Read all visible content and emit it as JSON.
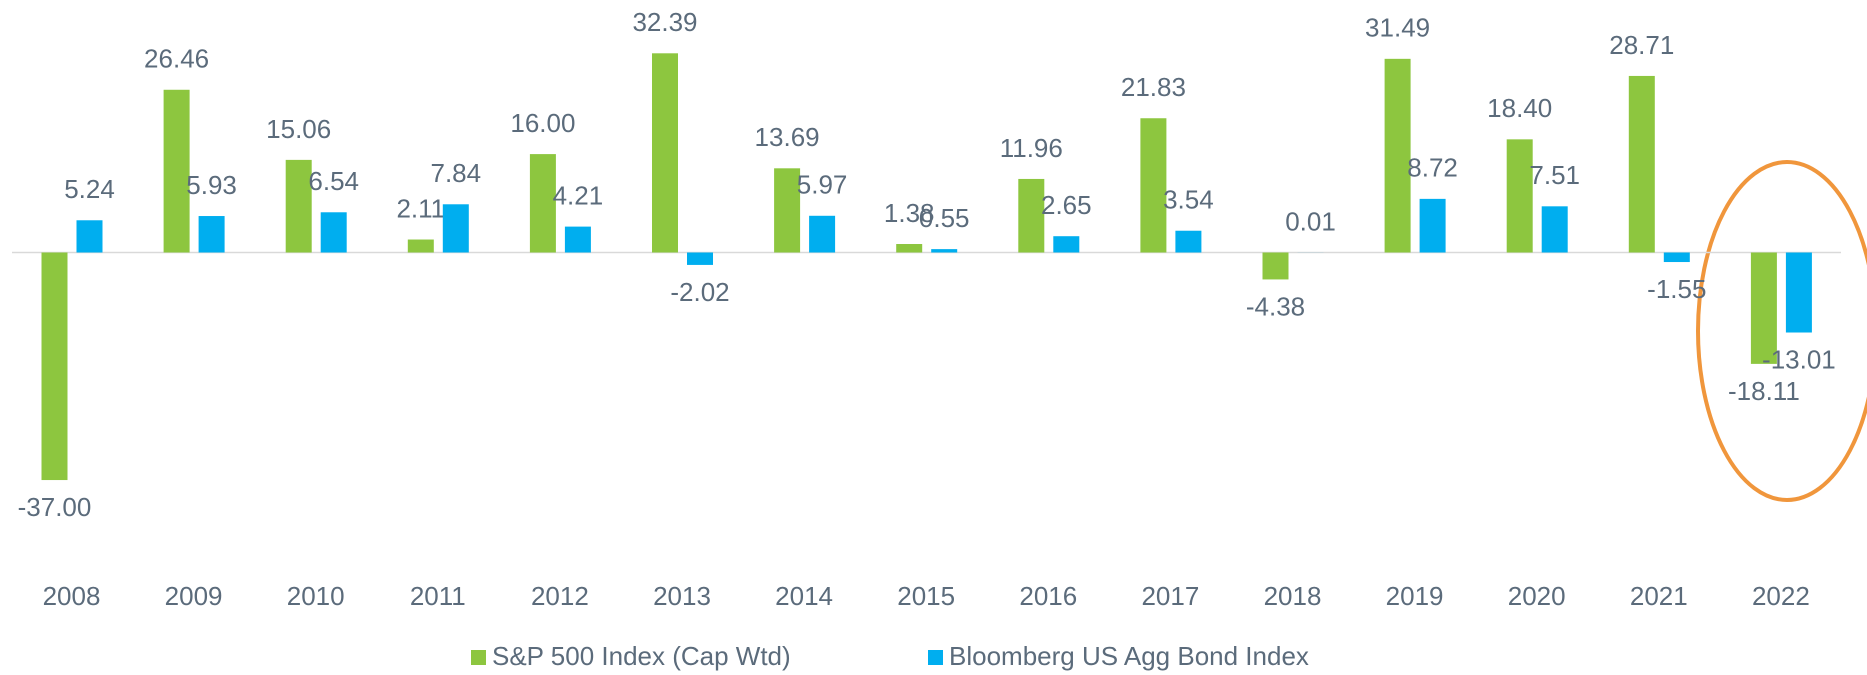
{
  "chart_data": {
    "type": "bar",
    "categories": [
      "2008",
      "2009",
      "2010",
      "2011",
      "2012",
      "2013",
      "2014",
      "2015",
      "2016",
      "2017",
      "2018",
      "2019",
      "2020",
      "2021",
      "2022"
    ],
    "series": [
      {
        "name": "S&P 500 Index (Cap Wtd)",
        "color": "#8dc63f",
        "values": [
          -37,
          26.46,
          15.06,
          2.11,
          16,
          32.39,
          13.69,
          1.38,
          11.96,
          21.83,
          -4.38,
          31.49,
          18.4,
          28.71,
          -18.11
        ],
        "value_labels": [
          "-37.00",
          "26.46",
          "15.06",
          "2.11",
          "16.00",
          "32.39",
          "13.69",
          "1.38",
          "11.96",
          "21.83",
          "-4.38",
          "31.49",
          "18.40",
          "28.71",
          "-18.11"
        ]
      },
      {
        "name": "Bloomberg US Agg Bond Index",
        "color": "#00aeef",
        "values": [
          5.24,
          5.93,
          6.54,
          7.84,
          4.21,
          -2.02,
          5.97,
          0.55,
          2.65,
          3.54,
          0.01,
          8.72,
          7.51,
          -1.55,
          -13.01
        ],
        "value_labels": [
          "5.24",
          "5.93",
          "6.54",
          "7.84",
          "4.21",
          "-2.02",
          "5.97",
          "0.55",
          "2.65",
          "3.54",
          "0.01",
          "8.72",
          "7.51",
          "-1.55",
          "-13.01"
        ]
      }
    ],
    "ylim": [
      -40,
      40
    ]
  }
}
